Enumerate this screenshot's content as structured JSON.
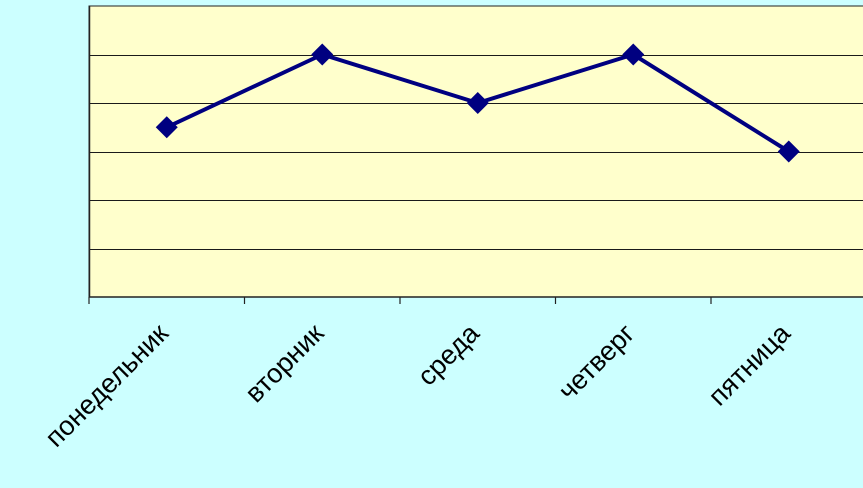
{
  "colors": {
    "background": "#ccffff",
    "plot_area": "#ffffcc",
    "gridline": "#1a1a1a",
    "series_line": "#000080",
    "marker": "#000080",
    "axis": "#222222",
    "tick_label": "#000000"
  },
  "chart_data": {
    "type": "line",
    "categories": [
      "понедельник",
      "вторник",
      "среда",
      "четверг",
      "пятница"
    ],
    "series": [
      {
        "values": [
          3.5,
          5,
          4,
          5,
          3
        ],
        "marker": "diamond"
      }
    ],
    "title": "",
    "xlabel": "",
    "ylabel": "",
    "ylim": [
      0,
      6
    ],
    "y_major_step": 1,
    "y_tick_labels_visible": false,
    "grid": {
      "horizontal": true,
      "vertical": false
    },
    "legend": "none",
    "x_tick_label_rotation": "-45deg"
  }
}
